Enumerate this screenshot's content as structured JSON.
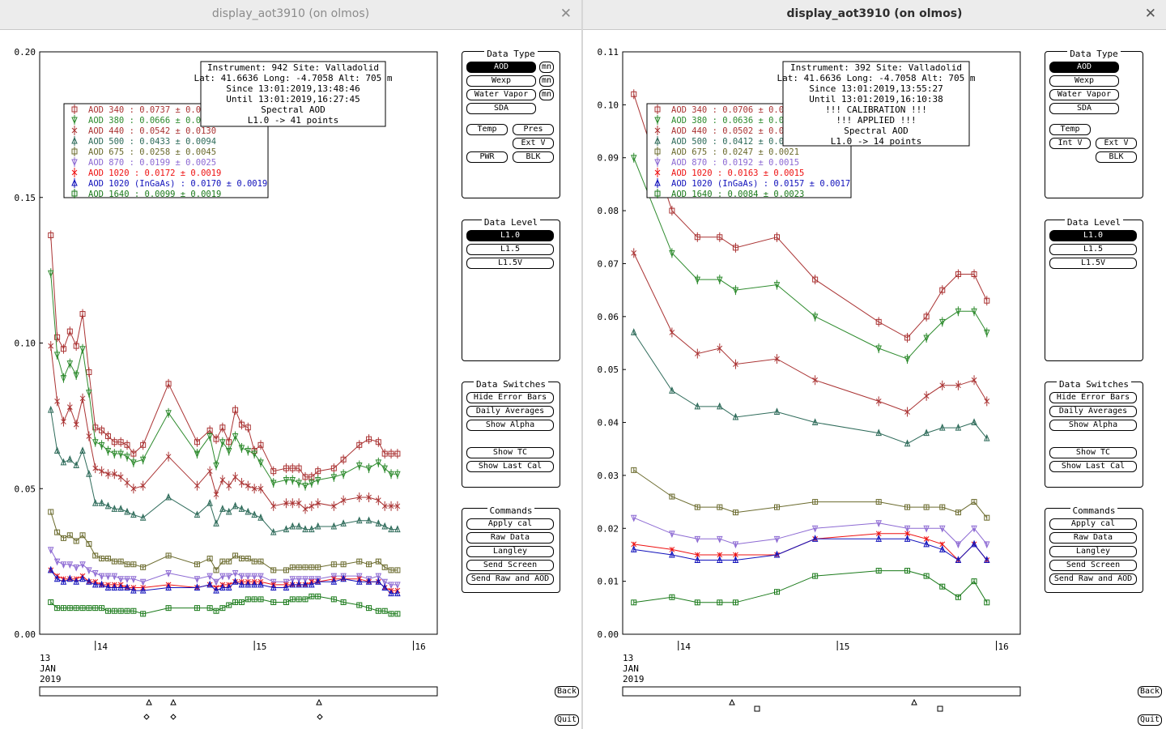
{
  "windows": [
    {
      "title": "display_aot3910 (on olmos)",
      "close_icon": "close-icon",
      "info": [
        "Instrument: 942 Site: Valladolid",
        "Lat: 41.6636 Long: -4.7058 Alt: 705 m",
        "Since 13:01:2019,13:48:46",
        "Until 13:01:2019,16:27:45",
        "Spectral AOD",
        "L1.0 -> 41 points"
      ],
      "legend": [
        {
          "label": "AOD 340  : 0.0737 ± 0.0",
          "color": "#aa3333"
        },
        {
          "label": "AOD 380  : 0.0666 ± 0.0",
          "color": "#2e8b2e"
        },
        {
          "label": "AOD 440  : 0.0542 ± 0.0130",
          "color": "#aa3333"
        },
        {
          "label": "AOD 500  : 0.0433 ± 0.0094",
          "color": "#2e6b5a"
        },
        {
          "label": "AOD 675  : 0.0258 ± 0.0045",
          "color": "#6b6b2e"
        },
        {
          "label": "AOD 870  : 0.0199 ± 0.0025",
          "color": "#8d6ad3"
        },
        {
          "label": "AOD 1020  : 0.0172 ± 0.0019",
          "color": "#ee1111"
        },
        {
          "label": "AOD 1020 (InGaAs)  : 0.0170 ± 0.0019",
          "color": "#1111bb"
        },
        {
          "label": "AOD 1640  : 0.0099 ± 0.0019",
          "color": "#1a7a1a"
        }
      ],
      "x_ticks": [
        {
          "label": "14",
          "day": 14
        },
        {
          "label": "15",
          "day": 15
        },
        {
          "label": "16",
          "day": 16
        }
      ],
      "date_label": [
        "13",
        "JAN",
        "2019"
      ],
      "back_label": "Back",
      "quit_label": "Quit"
    },
    {
      "title": "display_aot3910 (on olmos)",
      "close_icon": "close-icon",
      "info": [
        "Instrument: 392 Site: Valladolid",
        "Lat: 41.6636 Long: -4.7058 Alt: 705 m",
        "Since 13:01:2019,13:55:27",
        "Until 13:01:2019,16:10:38",
        "!!! CALIBRATION !!!",
        "!!!   APPLIED   !!!",
        "Spectral AOD",
        "L1.0 -> 14 points"
      ],
      "legend": [
        {
          "label": "AOD 340  : 0.0706 ± 0.0",
          "color": "#aa3333"
        },
        {
          "label": "AOD 380  : 0.0636 ± 0.0",
          "color": "#2e8b2e"
        },
        {
          "label": "AOD 440  : 0.0502 ± 0.0",
          "color": "#aa3333"
        },
        {
          "label": "AOD 500  : 0.0412 ± 0.0",
          "color": "#2e6b5a"
        },
        {
          "label": "AOD 675  : 0.0247 ± 0.0021",
          "color": "#6b6b2e"
        },
        {
          "label": "AOD 870  : 0.0192 ± 0.0015",
          "color": "#8d6ad3"
        },
        {
          "label": "AOD 1020  : 0.0163 ± 0.0015",
          "color": "#ee1111"
        },
        {
          "label": "AOD 1020 (InGaAs)  : 0.0157 ± 0.0017",
          "color": "#1111bb"
        },
        {
          "label": "AOD 1640  : 0.0084 ± 0.0023",
          "color": "#1a7a1a"
        }
      ],
      "x_ticks": [
        {
          "label": "14",
          "day": 14
        },
        {
          "label": "15",
          "day": 15
        },
        {
          "label": "16",
          "day": 16
        }
      ],
      "date_label": [
        "13",
        "JAN",
        "2019"
      ],
      "back_label": "Back",
      "quit_label": "Quit"
    }
  ],
  "panels": {
    "data_type": {
      "title": "Data Type",
      "aod": "AOD",
      "wexp": "Wexp",
      "water_vapor": "Water Vapor",
      "sda": "SDA",
      "mn": "mn",
      "temp": "Temp",
      "pres": "Pres",
      "ext_v": "Ext V",
      "int_v": "Int V",
      "pwr": "PWR",
      "blk": "BLK"
    },
    "data_level": {
      "title": "Data Level",
      "items": [
        "L1.0",
        "L1.5",
        "L1.5V"
      ]
    },
    "data_switches": {
      "title": "Data Switches",
      "items": [
        "Hide Error Bars",
        "Daily Averages",
        "Show Alpha",
        "Show TC",
        "Show Last Cal"
      ]
    },
    "commands": {
      "title": "Commands",
      "items": [
        "Apply cal",
        "Raw Data",
        "Langley",
        "Send Screen",
        "Send Raw and AOD"
      ]
    }
  },
  "chart_data": [
    {
      "type": "line",
      "title": "",
      "xlabel": "",
      "ylabel": "",
      "ylim": [
        0,
        0.2
      ],
      "y_ticks": [
        "0.00",
        "0.05",
        "0.10",
        "0.15",
        "0.20"
      ],
      "x": [
        13.72,
        13.76,
        13.8,
        13.84,
        13.88,
        13.92,
        13.96,
        14.0,
        14.04,
        14.08,
        14.12,
        14.16,
        14.2,
        14.24,
        14.3,
        14.46,
        14.64,
        14.72,
        14.76,
        14.8,
        14.84,
        14.88,
        14.92,
        14.96,
        15.0,
        15.04,
        15.12,
        15.2,
        15.24,
        15.28,
        15.32,
        15.36,
        15.4,
        15.5,
        15.56,
        15.66,
        15.72,
        15.78,
        15.82,
        15.86,
        15.9
      ],
      "series": [
        {
          "name": "AOD 340",
          "color": "#aa3333",
          "values": [
            0.137,
            0.102,
            0.098,
            0.104,
            0.099,
            0.11,
            0.09,
            0.071,
            0.07,
            0.068,
            0.066,
            0.066,
            0.065,
            0.062,
            0.065,
            0.086,
            0.066,
            0.07,
            0.067,
            0.071,
            0.066,
            0.077,
            0.072,
            0.071,
            0.063,
            0.065,
            0.056,
            0.057,
            0.057,
            0.057,
            0.054,
            0.054,
            0.056,
            0.057,
            0.06,
            0.065,
            0.067,
            0.066,
            0.062,
            0.062,
            0.062
          ]
        },
        {
          "name": "AOD 380",
          "color": "#2e8b2e",
          "values": [
            0.124,
            0.096,
            0.088,
            0.093,
            0.089,
            0.098,
            0.083,
            0.066,
            0.065,
            0.063,
            0.062,
            0.062,
            0.061,
            0.059,
            0.06,
            0.076,
            0.062,
            0.068,
            0.058,
            0.066,
            0.063,
            0.068,
            0.064,
            0.063,
            0.062,
            0.059,
            0.052,
            0.053,
            0.053,
            0.052,
            0.051,
            0.052,
            0.053,
            0.054,
            0.055,
            0.058,
            0.057,
            0.059,
            0.057,
            0.055,
            0.055
          ]
        },
        {
          "name": "AOD 440",
          "color": "#aa3333",
          "values": [
            0.099,
            0.08,
            0.073,
            0.078,
            0.072,
            0.081,
            0.068,
            0.057,
            0.056,
            0.055,
            0.055,
            0.054,
            0.052,
            0.05,
            0.051,
            0.061,
            0.051,
            0.056,
            0.048,
            0.053,
            0.051,
            0.054,
            0.052,
            0.051,
            0.05,
            0.05,
            0.044,
            0.045,
            0.045,
            0.045,
            0.043,
            0.044,
            0.045,
            0.044,
            0.046,
            0.047,
            0.047,
            0.046,
            0.044,
            0.044,
            0.044
          ]
        },
        {
          "name": "AOD 500",
          "color": "#2e6b5a",
          "values": [
            0.077,
            0.063,
            0.059,
            0.06,
            0.058,
            0.063,
            0.055,
            0.045,
            0.045,
            0.044,
            0.043,
            0.043,
            0.042,
            0.041,
            0.04,
            0.047,
            0.041,
            0.045,
            0.038,
            0.043,
            0.042,
            0.044,
            0.043,
            0.042,
            0.041,
            0.04,
            0.035,
            0.036,
            0.037,
            0.037,
            0.036,
            0.036,
            0.037,
            0.037,
            0.038,
            0.039,
            0.039,
            0.038,
            0.037,
            0.036,
            0.036
          ]
        },
        {
          "name": "AOD 675",
          "color": "#6b6b2e",
          "values": [
            0.042,
            0.035,
            0.033,
            0.034,
            0.032,
            0.034,
            0.031,
            0.027,
            0.026,
            0.026,
            0.025,
            0.025,
            0.024,
            0.024,
            0.023,
            0.027,
            0.024,
            0.026,
            0.022,
            0.025,
            0.025,
            0.027,
            0.026,
            0.026,
            0.025,
            0.025,
            0.022,
            0.022,
            0.023,
            0.023,
            0.023,
            0.023,
            0.023,
            0.024,
            0.024,
            0.025,
            0.024,
            0.025,
            0.023,
            0.022,
            0.022
          ]
        },
        {
          "name": "AOD 870",
          "color": "#8d6ad3",
          "values": [
            0.029,
            0.025,
            0.024,
            0.024,
            0.023,
            0.024,
            0.022,
            0.021,
            0.02,
            0.02,
            0.02,
            0.019,
            0.019,
            0.019,
            0.018,
            0.021,
            0.019,
            0.02,
            0.018,
            0.02,
            0.02,
            0.021,
            0.02,
            0.02,
            0.02,
            0.02,
            0.018,
            0.018,
            0.019,
            0.019,
            0.019,
            0.019,
            0.019,
            0.02,
            0.02,
            0.02,
            0.019,
            0.02,
            0.018,
            0.017,
            0.017
          ]
        },
        {
          "name": "AOD 1020",
          "color": "#ee1111",
          "values": [
            0.022,
            0.02,
            0.019,
            0.019,
            0.019,
            0.02,
            0.018,
            0.018,
            0.017,
            0.017,
            0.017,
            0.017,
            0.016,
            0.016,
            0.016,
            0.017,
            0.016,
            0.017,
            0.016,
            0.017,
            0.017,
            0.018,
            0.018,
            0.018,
            0.018,
            0.018,
            0.017,
            0.017,
            0.017,
            0.017,
            0.017,
            0.018,
            0.018,
            0.019,
            0.019,
            0.019,
            0.018,
            0.018,
            0.016,
            0.015,
            0.015
          ]
        },
        {
          "name": "AOD 1020 (InGaAs)",
          "color": "#1111bb",
          "values": [
            0.022,
            0.019,
            0.018,
            0.019,
            0.018,
            0.019,
            0.018,
            0.017,
            0.017,
            0.016,
            0.016,
            0.016,
            0.016,
            0.015,
            0.015,
            0.016,
            0.016,
            0.017,
            0.015,
            0.016,
            0.016,
            0.018,
            0.017,
            0.017,
            0.017,
            0.017,
            0.016,
            0.016,
            0.017,
            0.017,
            0.017,
            0.017,
            0.018,
            0.018,
            0.019,
            0.018,
            0.018,
            0.018,
            0.016,
            0.014,
            0.014
          ]
        },
        {
          "name": "AOD 1640",
          "color": "#1a7a1a",
          "values": [
            0.011,
            0.009,
            0.009,
            0.009,
            0.009,
            0.009,
            0.009,
            0.009,
            0.009,
            0.008,
            0.008,
            0.008,
            0.008,
            0.008,
            0.007,
            0.009,
            0.009,
            0.009,
            0.008,
            0.009,
            0.01,
            0.011,
            0.011,
            0.012,
            0.012,
            0.012,
            0.011,
            0.011,
            0.012,
            0.012,
            0.012,
            0.013,
            0.013,
            0.012,
            0.011,
            0.01,
            0.009,
            0.008,
            0.008,
            0.007,
            0.007
          ]
        }
      ]
    },
    {
      "type": "line",
      "title": "",
      "xlabel": "",
      "ylabel": "",
      "ylim": [
        0,
        0.11
      ],
      "y_ticks": [
        "0.00",
        "0.01",
        "0.02",
        "0.03",
        "0.04",
        "0.05",
        "0.06",
        "0.07",
        "0.08",
        "0.09",
        "0.10",
        "0.11"
      ],
      "x": [
        13.72,
        13.96,
        14.12,
        14.26,
        14.36,
        14.62,
        14.86,
        15.26,
        15.44,
        15.56,
        15.66,
        15.76,
        15.86,
        15.94
      ],
      "series": [
        {
          "name": "AOD 340",
          "color": "#aa3333",
          "values": [
            0.102,
            0.08,
            0.075,
            0.075,
            0.073,
            0.075,
            0.067,
            0.059,
            0.056,
            0.06,
            0.065,
            0.068,
            0.068,
            0.063
          ]
        },
        {
          "name": "AOD 380",
          "color": "#2e8b2e",
          "values": [
            0.09,
            0.072,
            0.067,
            0.067,
            0.065,
            0.066,
            0.06,
            0.054,
            0.052,
            0.056,
            0.059,
            0.061,
            0.061,
            0.057
          ]
        },
        {
          "name": "AOD 440",
          "color": "#aa3333",
          "values": [
            0.072,
            0.057,
            0.053,
            0.054,
            0.051,
            0.052,
            0.048,
            0.044,
            0.042,
            0.045,
            0.047,
            0.047,
            0.048,
            0.044
          ]
        },
        {
          "name": "AOD 500",
          "color": "#2e6b5a",
          "values": [
            0.057,
            0.046,
            0.043,
            0.043,
            0.041,
            0.042,
            0.04,
            0.038,
            0.036,
            0.038,
            0.039,
            0.039,
            0.04,
            0.037
          ]
        },
        {
          "name": "AOD 675",
          "color": "#6b6b2e",
          "values": [
            0.031,
            0.026,
            0.024,
            0.024,
            0.023,
            0.024,
            0.025,
            0.025,
            0.024,
            0.024,
            0.024,
            0.023,
            0.025,
            0.022
          ]
        },
        {
          "name": "AOD 870",
          "color": "#8d6ad3",
          "values": [
            0.022,
            0.019,
            0.018,
            0.018,
            0.017,
            0.018,
            0.02,
            0.021,
            0.02,
            0.02,
            0.02,
            0.017,
            0.02,
            0.017
          ]
        },
        {
          "name": "AOD 1020",
          "color": "#ee1111",
          "values": [
            0.017,
            0.016,
            0.015,
            0.015,
            0.015,
            0.015,
            0.018,
            0.019,
            0.019,
            0.018,
            0.017,
            0.014,
            0.017,
            0.014
          ]
        },
        {
          "name": "AOD 1020 (InGaAs)",
          "color": "#1111bb",
          "values": [
            0.016,
            0.015,
            0.014,
            0.014,
            0.014,
            0.015,
            0.018,
            0.018,
            0.018,
            0.017,
            0.016,
            0.014,
            0.017,
            0.014
          ]
        },
        {
          "name": "AOD 1640",
          "color": "#1a7a1a",
          "values": [
            0.006,
            0.007,
            0.006,
            0.006,
            0.006,
            0.008,
            0.011,
            0.012,
            0.012,
            0.011,
            0.009,
            0.007,
            0.01,
            0.006
          ]
        }
      ]
    }
  ]
}
